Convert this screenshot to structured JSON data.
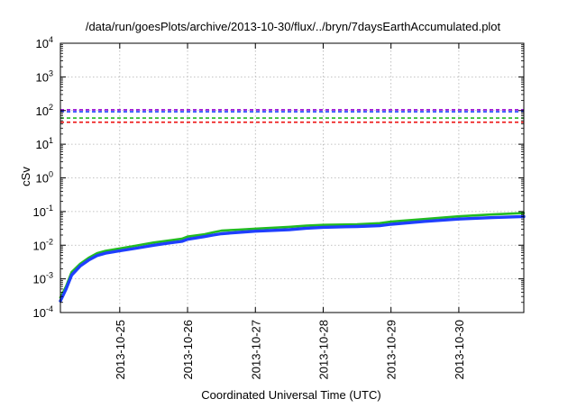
{
  "chart_data": {
    "type": "line",
    "title": "/data/run/goesPlots/archive/2013-10-30/flux/../bryn/7daysEarthAccumulated.plot",
    "xlabel": "Coordinated Universal Time (UTC)",
    "ylabel": "cSv",
    "yscale": "log",
    "ylim": [
      0.0001,
      10000
    ],
    "xlim": [
      "2013-10-24T03:00",
      "2013-10-30T23:00"
    ],
    "grid": true,
    "x_ticks": [
      "2013-10-25",
      "2013-10-26",
      "2013-10-27",
      "2013-10-28",
      "2013-10-29",
      "2013-10-30"
    ],
    "y_ticks": [
      {
        "value": 0.0001,
        "base": "10",
        "exp": "-4"
      },
      {
        "value": 0.001,
        "base": "10",
        "exp": "-3"
      },
      {
        "value": 0.01,
        "base": "10",
        "exp": "-2"
      },
      {
        "value": 0.1,
        "base": "10",
        "exp": "-1"
      },
      {
        "value": 1,
        "base": "10",
        "exp": "0"
      },
      {
        "value": 10,
        "base": "10",
        "exp": "1"
      },
      {
        "value": 100,
        "base": "10",
        "exp": "2"
      },
      {
        "value": 1000,
        "base": "10",
        "exp": "3"
      },
      {
        "value": 10000,
        "base": "10",
        "exp": "4"
      }
    ],
    "thresholds": [
      {
        "value": 105,
        "color": "#9400d3"
      },
      {
        "value": 92,
        "color": "#1f3fff"
      },
      {
        "value": 60,
        "color": "#22bb22"
      },
      {
        "value": 45,
        "color": "#ee1111"
      }
    ],
    "series": [
      {
        "color": "#22bb22",
        "x": [
          "2013-10-24T03:00",
          "2013-10-24T05:00",
          "2013-10-24T07:00",
          "2013-10-24T10:00",
          "2013-10-24T13:00",
          "2013-10-24T16:00",
          "2013-10-24T19:00",
          "2013-10-25T00:00",
          "2013-10-25T06:00",
          "2013-10-25T12:00",
          "2013-10-25T18:00",
          "2013-10-25T22:00",
          "2013-10-26T00:00",
          "2013-10-26T06:00",
          "2013-10-26T09:00",
          "2013-10-26T12:00",
          "2013-10-26T18:00",
          "2013-10-27T00:00",
          "2013-10-27T12:00",
          "2013-10-27T18:00",
          "2013-10-28T00:00",
          "2013-10-28T12:00",
          "2013-10-28T20:00",
          "2013-10-29T00:00",
          "2013-10-29T12:00",
          "2013-10-30T00:00",
          "2013-10-30T12:00",
          "2013-10-30T23:00"
        ],
        "y": [
          0.00028,
          0.0006,
          0.0016,
          0.0028,
          0.0042,
          0.0058,
          0.0068,
          0.008,
          0.0098,
          0.012,
          0.014,
          0.0155,
          0.018,
          0.021,
          0.024,
          0.027,
          0.029,
          0.031,
          0.035,
          0.038,
          0.04,
          0.042,
          0.045,
          0.05,
          0.06,
          0.072,
          0.082,
          0.09
        ]
      },
      {
        "color": "#1f3fff",
        "x": [
          "2013-10-24T03:00",
          "2013-10-24T05:00",
          "2013-10-24T07:00",
          "2013-10-24T10:00",
          "2013-10-24T13:00",
          "2013-10-24T16:00",
          "2013-10-24T19:00",
          "2013-10-25T00:00",
          "2013-10-25T06:00",
          "2013-10-25T12:00",
          "2013-10-25T18:00",
          "2013-10-25T22:00",
          "2013-10-26T00:00",
          "2013-10-26T06:00",
          "2013-10-26T09:00",
          "2013-10-26T12:00",
          "2013-10-26T18:00",
          "2013-10-27T00:00",
          "2013-10-27T12:00",
          "2013-10-27T18:00",
          "2013-10-28T00:00",
          "2013-10-28T12:00",
          "2013-10-28T20:00",
          "2013-10-29T00:00",
          "2013-10-29T12:00",
          "2013-10-30T00:00",
          "2013-10-30T12:00",
          "2013-10-30T23:00"
        ],
        "y": [
          0.00022,
          0.0005,
          0.0013,
          0.0024,
          0.0036,
          0.0049,
          0.0058,
          0.0068,
          0.0082,
          0.01,
          0.0118,
          0.013,
          0.015,
          0.018,
          0.02,
          0.022,
          0.024,
          0.026,
          0.029,
          0.032,
          0.034,
          0.036,
          0.038,
          0.042,
          0.051,
          0.06,
          0.066,
          0.071
        ]
      }
    ]
  }
}
